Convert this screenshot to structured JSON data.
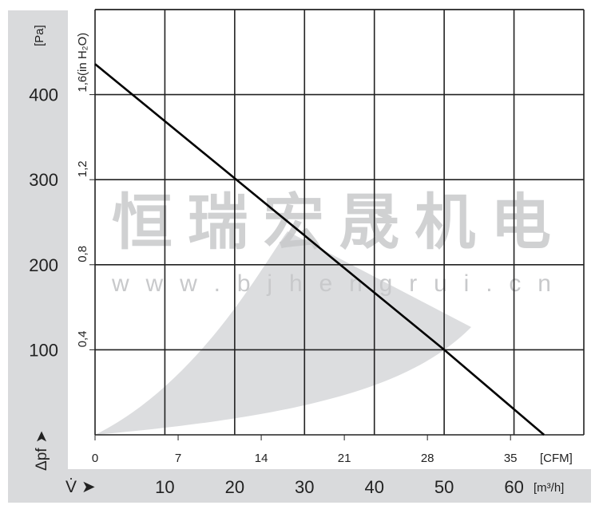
{
  "chart_data": {
    "type": "line",
    "y_unit_left": "[Pa]",
    "y_unit_inner": "(in H₂O)",
    "ylabel": "Δpf",
    "xlabel": "V̇",
    "x_unit_bottom": "[m³/h]",
    "x_unit_top": "[CFM]",
    "xlim": [
      0,
      70
    ],
    "ylim": [
      0,
      500
    ],
    "grid": true,
    "y_ticks_pa": [
      "400",
      "300",
      "200",
      "100"
    ],
    "y_ticks_pa_values": [
      400,
      300,
      200,
      100
    ],
    "y_ticks_inh2o": [
      "1,6",
      "1,2",
      "0,8",
      "0,4"
    ],
    "y_ticks_inh2o_values": [
      400,
      300,
      200,
      100
    ],
    "x_ticks_m3h": [
      "10",
      "20",
      "30",
      "40",
      "50",
      "60"
    ],
    "x_ticks_m3h_values": [
      10,
      20,
      30,
      40,
      50,
      60
    ],
    "x_ticks_cfm": [
      "0",
      "7",
      "14",
      "21",
      "28",
      "35"
    ],
    "x_ticks_cfm_values": [
      0,
      11.9,
      23.8,
      35.7,
      47.6,
      59.5
    ],
    "series": [
      {
        "x": [
          0,
          50,
          64.3
        ],
        "y": [
          436,
          100,
          0
        ]
      }
    ]
  },
  "watermark": {
    "name": "恒瑞宏晟机电",
    "url": "w w w . b j h e n g r u i . c n"
  },
  "colors": {
    "band": "#d9dadc",
    "grid": "#222222",
    "curve": "#000000",
    "watermark": "#c8c9cb"
  }
}
